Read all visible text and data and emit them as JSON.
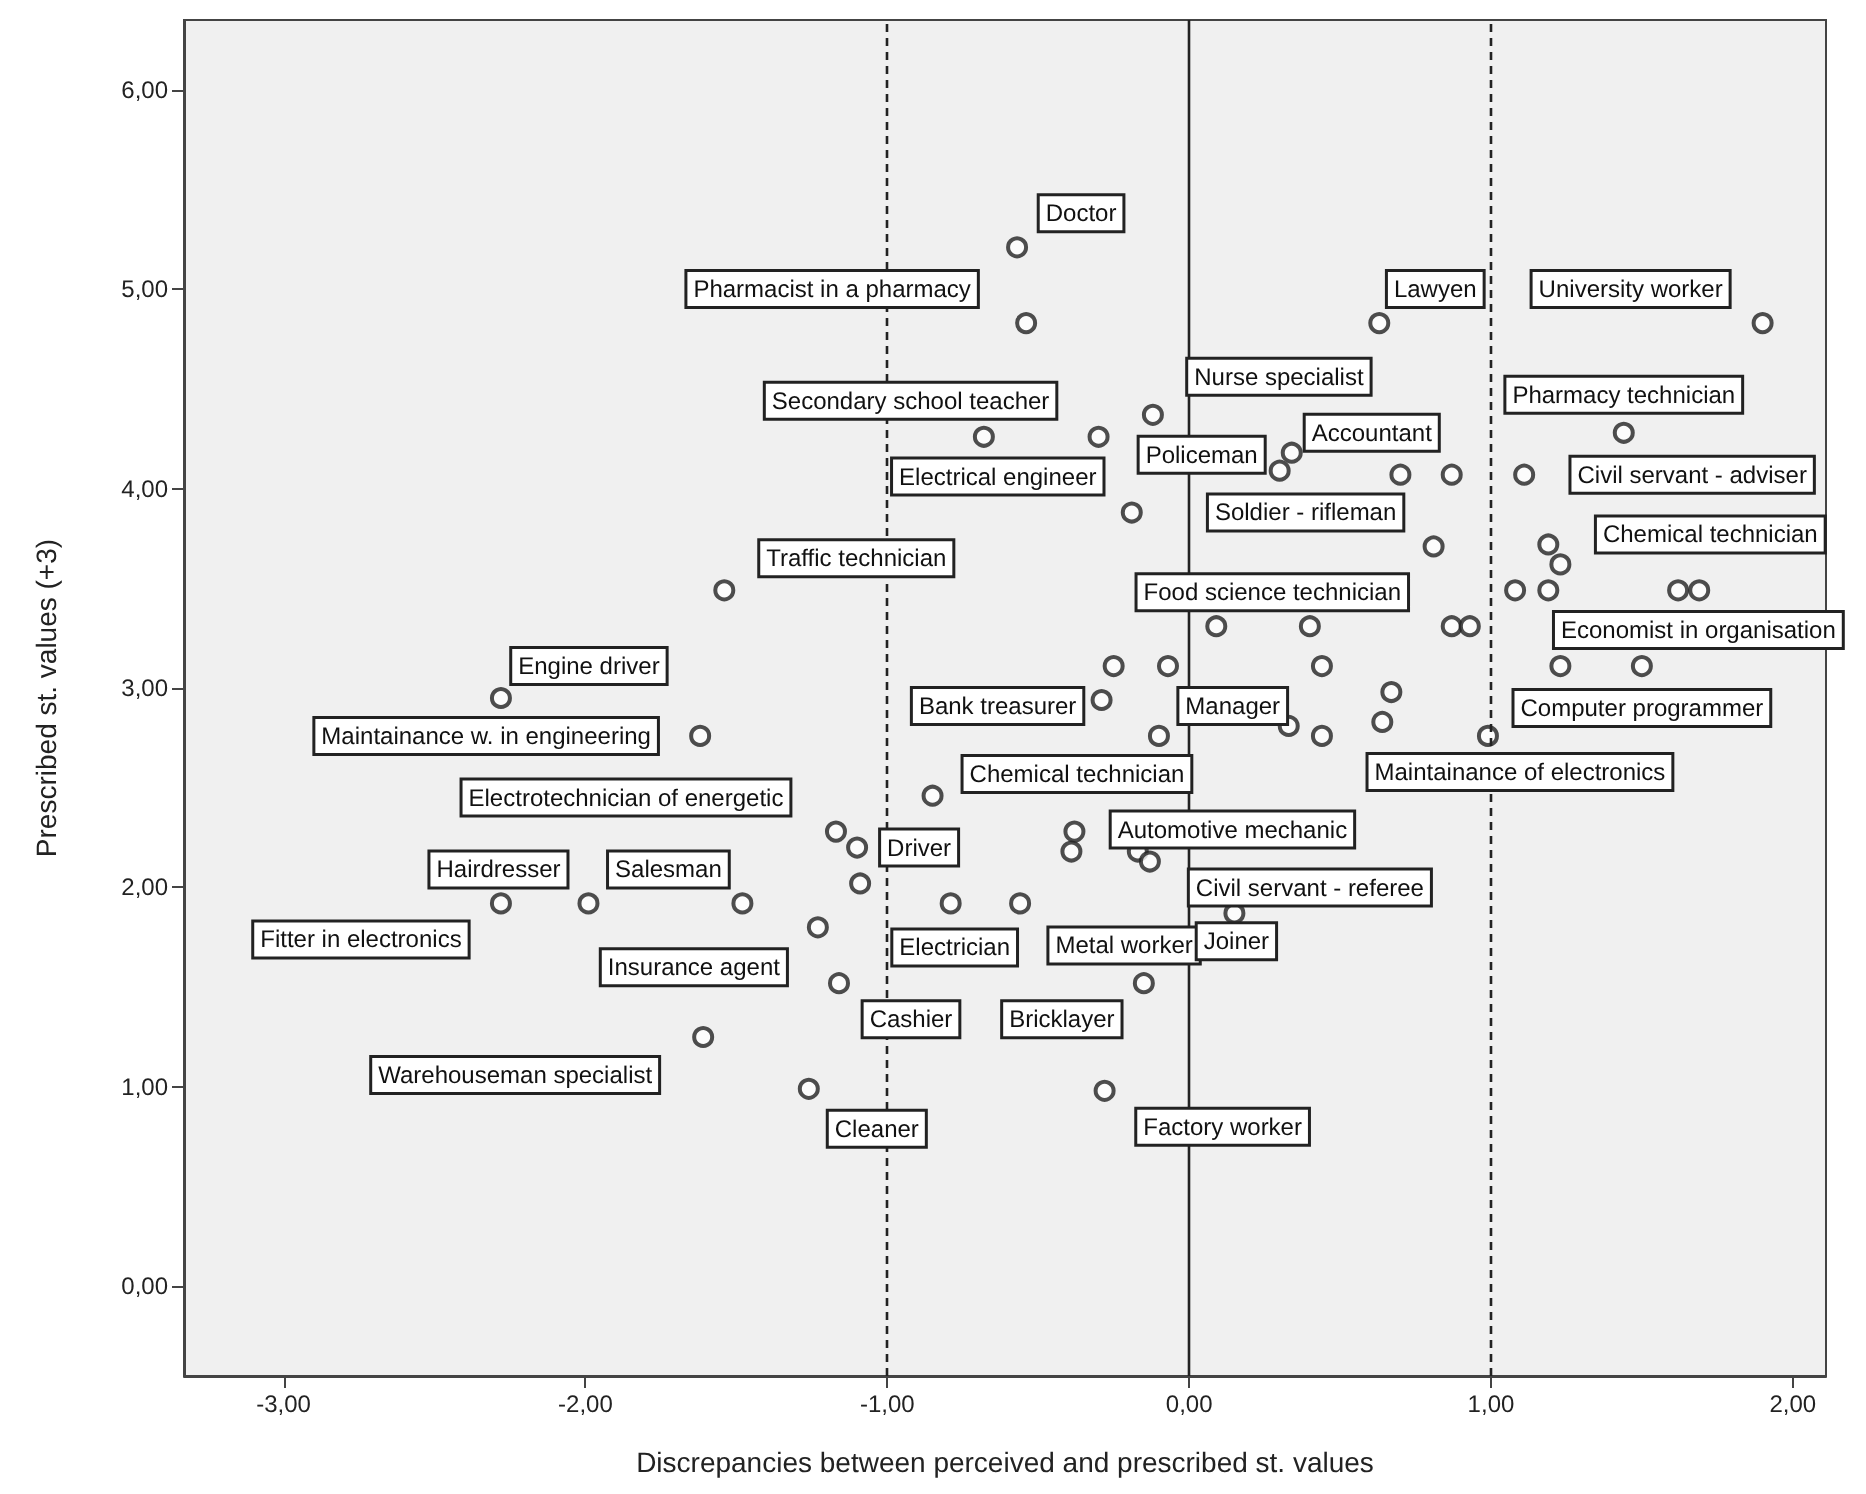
{
  "chart_data": {
    "type": "scatter",
    "xlabel": "Discrepancies between perceived and prescribed st. values",
    "ylabel": "Prescribed st. values (+3)",
    "xlim": [
      -3.33,
      2.11
    ],
    "ylim": [
      -0.45,
      6.35
    ],
    "xticks": [
      {
        "value": -3,
        "label": "-3,00"
      },
      {
        "value": -2,
        "label": "-2,00"
      },
      {
        "value": -1,
        "label": "-1,00"
      },
      {
        "value": 0,
        "label": "0,00"
      },
      {
        "value": 1,
        "label": "1,00"
      },
      {
        "value": 2,
        "label": "2,00"
      }
    ],
    "yticks": [
      {
        "value": 0,
        "label": "0,00"
      },
      {
        "value": 1,
        "label": "1,00"
      },
      {
        "value": 2,
        "label": "2,00"
      },
      {
        "value": 3,
        "label": "3,00"
      },
      {
        "value": 4,
        "label": "4,00"
      },
      {
        "value": 5,
        "label": "5,00"
      },
      {
        "value": 6,
        "label": "6,00"
      }
    ],
    "marker": "circle",
    "series": [
      {
        "color": "#222222",
        "x": [
          -0.57,
          -0.54,
          -0.68,
          -0.3,
          -0.19,
          -0.12,
          0.3,
          0.34,
          0.7,
          0.87,
          0.81,
          0.63,
          1.9,
          1.44,
          1.11,
          1.19,
          1.23,
          1.08,
          1.19,
          1.62,
          1.69,
          0.09,
          0.4,
          0.87,
          0.93,
          1.23,
          1.5,
          -0.25,
          -0.07,
          0.44,
          0.67,
          0.64,
          0.44,
          -0.1,
          0.99,
          0.33,
          -0.29,
          -1.54,
          -2.28,
          -1.62,
          -0.85,
          -1.17,
          -1.1,
          -1.09,
          -2.28,
          -1.99,
          -1.48,
          -0.79,
          -0.56,
          -1.23,
          -1.16,
          -0.15,
          -1.61,
          -1.26,
          -0.28,
          -0.38,
          -0.39,
          -0.17,
          -0.13,
          0.15
        ],
        "values": [
          5.21,
          4.83,
          4.26,
          4.26,
          3.88,
          4.37,
          4.09,
          4.18,
          4.07,
          4.07,
          3.71,
          4.83,
          4.83,
          4.28,
          4.07,
          3.72,
          3.62,
          3.49,
          3.49,
          3.49,
          3.49,
          3.31,
          3.31,
          3.31,
          3.31,
          3.11,
          3.11,
          3.11,
          3.11,
          3.11,
          2.98,
          2.83,
          2.76,
          2.76,
          2.76,
          2.81,
          2.94,
          3.49,
          2.95,
          2.76,
          2.46,
          2.28,
          2.2,
          2.02,
          1.92,
          1.92,
          1.92,
          1.92,
          1.92,
          1.8,
          1.52,
          1.52,
          1.25,
          0.99,
          0.98,
          2.28,
          2.18,
          2.18,
          2.13,
          1.87
        ]
      }
    ],
    "ref_lines": [
      {
        "axis": "x",
        "value": -1,
        "line_style": "dashed",
        "color": "#222222"
      },
      {
        "axis": "x",
        "value": 0,
        "line_style": "solid",
        "color": "#222222"
      },
      {
        "axis": "x",
        "value": 1,
        "line_style": "dashed",
        "color": "#222222"
      }
    ],
    "annotations": [
      {
        "text": "Doctor",
        "x": -0.57,
        "y": 5.21
      },
      {
        "text": "Pharmacist in a pharmacy",
        "x": -0.54,
        "y": 4.83
      },
      {
        "text": "Secondary school teacher",
        "x": -0.3,
        "y": 4.26
      },
      {
        "text": "Electrical engineer",
        "x": -0.19,
        "y": 3.88
      },
      {
        "text": "Nurse specialist",
        "x": -0.12,
        "y": 4.37
      },
      {
        "text": "Policeman",
        "x": 0.3,
        "y": 4.09
      },
      {
        "text": "Accountant",
        "x": 0.34,
        "y": 4.18
      },
      {
        "text": "Soldier - rifleman",
        "x": 0.81,
        "y": 3.71
      },
      {
        "text": "Lawyen",
        "x": 0.63,
        "y": 4.83
      },
      {
        "text": "University worker",
        "x": 1.9,
        "y": 4.83
      },
      {
        "text": "Pharmacy technician",
        "x": 1.44,
        "y": 4.28
      },
      {
        "text": "Civil servant - adviser",
        "x": 1.11,
        "y": 4.07
      },
      {
        "text": "Chemical technician",
        "x": 1.19,
        "y": 3.72
      },
      {
        "text": "Traffic technician",
        "x": -1.54,
        "y": 3.49
      },
      {
        "text": "Food science technician",
        "x": 0.09,
        "y": 3.31
      },
      {
        "text": "Economist in organisation",
        "x": 1.23,
        "y": 3.11
      },
      {
        "text": "Engine driver",
        "x": -2.28,
        "y": 2.95
      },
      {
        "text": "Maintainance w. in engineering",
        "x": -1.62,
        "y": 2.76
      },
      {
        "text": "Bank treasurer",
        "x": -0.29,
        "y": 2.94
      },
      {
        "text": "Manager",
        "x": 0.33,
        "y": 2.81
      },
      {
        "text": "Computer programmer",
        "x": 1.5,
        "y": 3.11
      },
      {
        "text": "Maintainance of electronics",
        "x": 0.99,
        "y": 2.76
      },
      {
        "text": "Chemical technician",
        "x": -0.1,
        "y": 2.76
      },
      {
        "text": "Electrotechnician of energetic",
        "x": -1.17,
        "y": 2.28
      },
      {
        "text": "Automotive mechanic",
        "x": -0.38,
        "y": 2.28
      },
      {
        "text": "Driver",
        "x": -1.1,
        "y": 2.2
      },
      {
        "text": "Fitter in electronics",
        "x": -2.28,
        "y": 1.92
      },
      {
        "text": "Hairdresser",
        "x": -1.99,
        "y": 1.92
      },
      {
        "text": "Salesman",
        "x": -1.48,
        "y": 1.92
      },
      {
        "text": "Insurance agent",
        "x": -1.23,
        "y": 1.8
      },
      {
        "text": "Warehouseman specialist",
        "x": -1.61,
        "y": 1.25
      },
      {
        "text": "Electrician",
        "x": -0.79,
        "y": 1.92
      },
      {
        "text": "Metal worker",
        "x": -0.56,
        "y": 1.92
      },
      {
        "text": "Bricklayer",
        "x": -0.15,
        "y": 1.52
      },
      {
        "text": "Cashier",
        "x": -1.16,
        "y": 1.52
      },
      {
        "text": "Cleaner",
        "x": -1.26,
        "y": 0.99
      },
      {
        "text": "Factory worker",
        "x": -0.28,
        "y": 0.98
      },
      {
        "text": "Civil servant - referee",
        "x": -0.13,
        "y": 2.13
      },
      {
        "text": "Joiner",
        "x": 0.15,
        "y": 1.87
      }
    ]
  }
}
